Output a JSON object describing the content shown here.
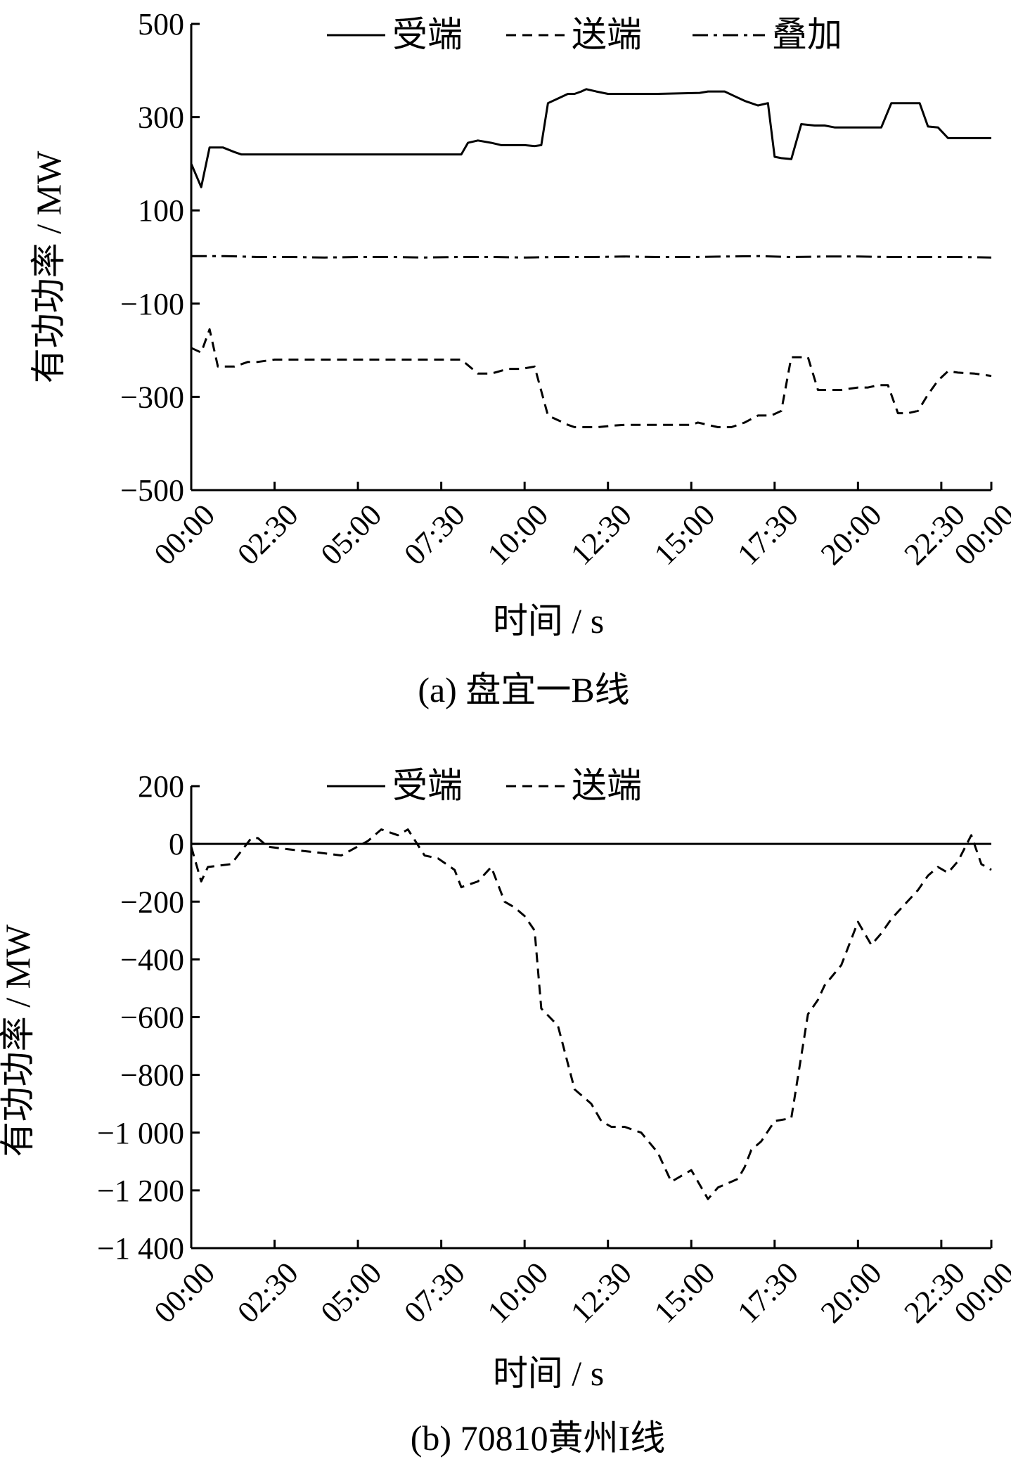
{
  "chart_data": [
    {
      "type": "line",
      "caption": "(a)  盘宜一B线",
      "xlabel": "时间 / s",
      "ylabel": "有功功率 / MW",
      "ylim": [
        -500,
        500
      ],
      "yticks": [
        500,
        300,
        100,
        -100,
        -300,
        -500
      ],
      "ytick_labels": [
        "500",
        "300",
        "100",
        "−100",
        "−300",
        "−500"
      ],
      "xlim": [
        0,
        24
      ],
      "xticks": [
        0,
        2.5,
        5,
        7.5,
        10,
        12.5,
        15,
        17.5,
        20,
        22.5,
        24
      ],
      "xtick_labels": [
        "00:00",
        "02:30",
        "05:00",
        "07:30",
        "10:00",
        "12:30",
        "15:00",
        "17:30",
        "20:00",
        "22:30",
        "00:00"
      ],
      "grid": false,
      "legend": "top",
      "series": [
        {
          "name": "受端",
          "dash": "solid",
          "x": [
            0,
            0.3,
            0.55,
            0.95,
            1.3,
            1.5,
            2.5,
            5,
            7.5,
            8.1,
            8.3,
            8.6,
            9.0,
            9.3,
            9.5,
            10.0,
            10.3,
            10.5,
            10.7,
            11.0,
            11.3,
            11.5,
            11.7,
            11.85,
            12.15,
            12.5,
            14.0,
            15.25,
            15.5,
            15.75,
            16.0,
            16.3,
            16.6,
            17.0,
            17.3,
            17.5,
            17.7,
            18.0,
            18.3,
            18.7,
            19.0,
            19.3,
            20.3,
            20.7,
            21.0,
            21.2,
            21.5,
            21.85,
            22.1,
            22.4,
            22.7,
            23.1,
            24.0
          ],
          "y": [
            200,
            150,
            235,
            235,
            225,
            220,
            220,
            220,
            220,
            220,
            245,
            250,
            245,
            240,
            240,
            240,
            238,
            240,
            330,
            340,
            350,
            350,
            355,
            360,
            355,
            350,
            350,
            352,
            355,
            355,
            355,
            345,
            335,
            325,
            330,
            215,
            212,
            210,
            285,
            282,
            282,
            278,
            278,
            278,
            330,
            330,
            330,
            330,
            280,
            278,
            255,
            255,
            255
          ]
        },
        {
          "name": "送端",
          "dash": "dashed",
          "x": [
            0,
            0.3,
            0.55,
            0.8,
            1.3,
            1.7,
            2.0,
            2.5,
            5,
            7.5,
            8.1,
            8.6,
            9.0,
            9.5,
            9.9,
            10.3,
            10.7,
            11.0,
            11.3,
            11.5,
            11.8,
            12.2,
            12.6,
            13.0,
            14.0,
            15.0,
            15.2,
            15.5,
            15.8,
            16.2,
            16.6,
            17.0,
            17.4,
            17.7,
            18.0,
            18.2,
            18.5,
            18.8,
            19.0,
            19.5,
            20.0,
            20.3,
            20.6,
            20.9,
            21.2,
            21.5,
            21.8,
            22.1,
            22.4,
            22.7,
            23.0,
            23.5,
            24.0
          ],
          "y": [
            -195,
            -205,
            -155,
            -235,
            -235,
            -225,
            -225,
            -220,
            -220,
            -220,
            -220,
            -250,
            -250,
            -240,
            -240,
            -235,
            -340,
            -350,
            -360,
            -365,
            -365,
            -365,
            -362,
            -360,
            -360,
            -360,
            -355,
            -360,
            -365,
            -365,
            -355,
            -340,
            -340,
            -330,
            -215,
            -215,
            -215,
            -285,
            -285,
            -285,
            -280,
            -280,
            -275,
            -275,
            -335,
            -335,
            -330,
            -295,
            -265,
            -245,
            -248,
            -250,
            -255
          ]
        },
        {
          "name": "叠加",
          "dash": "dashdot",
          "x": [
            0,
            1,
            2,
            3,
            4,
            5,
            6,
            7,
            8,
            9,
            10,
            11,
            12,
            13,
            14,
            15,
            16,
            17,
            18,
            19,
            20,
            21,
            22,
            23,
            24
          ],
          "y": [
            2,
            2,
            0,
            0,
            -1,
            0,
            0,
            -1,
            0,
            0,
            -1,
            0,
            0,
            1,
            0,
            0,
            1,
            2,
            0,
            1,
            1,
            0,
            0,
            0,
            -1
          ]
        }
      ]
    },
    {
      "type": "line",
      "caption": "(b) 70810黄州I线",
      "xlabel": "时间 / s",
      "ylabel": "有功功率 / MW",
      "ylim": [
        -1400,
        200
      ],
      "yticks": [
        200,
        0,
        -200,
        -400,
        -600,
        -800,
        -1000,
        -1200,
        -1400
      ],
      "ytick_labels": [
        "200",
        "0",
        "−200",
        "−400",
        "−600",
        "−800",
        "−1 000",
        "−1 200",
        "−1 400"
      ],
      "xlim": [
        0,
        24
      ],
      "xticks": [
        0,
        2.5,
        5,
        7.5,
        10,
        12.5,
        15,
        17.5,
        20,
        22.5,
        24
      ],
      "xtick_labels": [
        "00:00",
        "02:30",
        "05:00",
        "07:30",
        "10:00",
        "12:30",
        "15:00",
        "17:30",
        "20:00",
        "22:30",
        "00:00"
      ],
      "grid": false,
      "legend": "top",
      "series": [
        {
          "name": "受端",
          "dash": "solid",
          "x": [
            0,
            24
          ],
          "y": [
            0,
            0
          ]
        },
        {
          "name": "送端",
          "dash": "dashed",
          "x": [
            0,
            0.3,
            0.5,
            1.2,
            1.8,
            2.0,
            2.3,
            3.0,
            3.8,
            4.5,
            5.3,
            5.7,
            6.2,
            6.5,
            7.0,
            7.4,
            7.9,
            8.1,
            8.6,
            9.0,
            9.4,
            9.7,
            10.0,
            10.3,
            10.5,
            11.0,
            11.5,
            12.0,
            12.3,
            12.6,
            12.8,
            13.0,
            13.5,
            14.0,
            14.4,
            14.7,
            15.0,
            15.5,
            15.8,
            16.4,
            16.6,
            16.8,
            17.1,
            17.5,
            18.0,
            18.5,
            18.8,
            19.0,
            19.5,
            20.0,
            20.4,
            20.7,
            21.0,
            21.4,
            21.8,
            22.1,
            22.4,
            22.7,
            23.0,
            23.4,
            23.7,
            24.0
          ],
          "y": [
            -10,
            -130,
            -80,
            -70,
            20,
            20,
            -10,
            -20,
            -30,
            -40,
            10,
            50,
            30,
            50,
            -40,
            -50,
            -90,
            -150,
            -130,
            -80,
            -200,
            -220,
            -250,
            -300,
            -570,
            -630,
            -850,
            -900,
            -960,
            -980,
            -980,
            -980,
            -1000,
            -1070,
            -1170,
            -1150,
            -1130,
            -1230,
            -1190,
            -1160,
            -1120,
            -1060,
            -1030,
            -960,
            -950,
            -590,
            -540,
            -490,
            -420,
            -270,
            -350,
            -310,
            -260,
            -210,
            -160,
            -110,
            -80,
            -100,
            -60,
            30,
            -70,
            -90
          ]
        }
      ]
    }
  ]
}
